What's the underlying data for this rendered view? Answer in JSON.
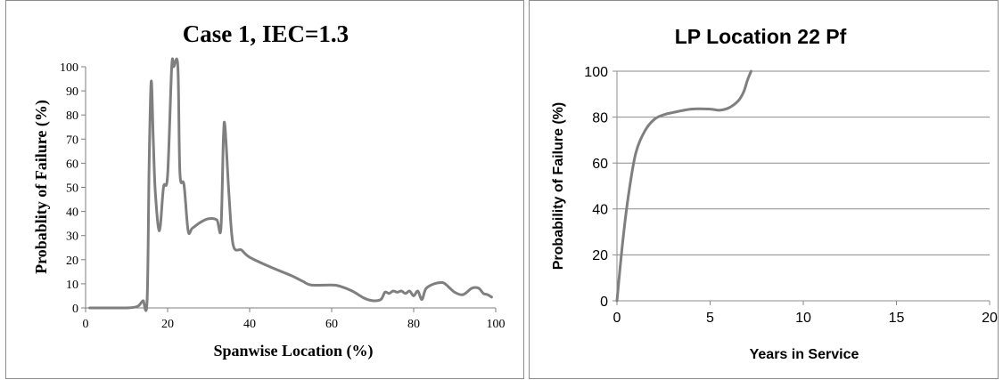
{
  "chart_data": [
    {
      "type": "line",
      "title": "Case 1, IEC=1.3",
      "xlabel": "Spanwise Location (%)",
      "ylabel": "Probablity of Failure (%)",
      "xlim": [
        0,
        100
      ],
      "ylim": [
        0,
        100
      ],
      "xticks": [
        0,
        20,
        40,
        60,
        80,
        100
      ],
      "yticks": [
        0,
        10,
        20,
        30,
        40,
        50,
        60,
        70,
        80,
        90,
        100
      ],
      "grid": false,
      "line_color": "#7f7f7f",
      "series": [
        {
          "x": [
            1,
            5,
            10,
            12,
            13,
            14,
            15,
            15.5,
            16,
            16.5,
            17,
            18,
            19,
            20,
            21,
            21.5,
            22.5,
            23,
            24,
            25,
            26,
            28,
            30,
            32,
            33,
            33.6,
            34,
            35,
            36,
            38,
            40,
            45,
            50,
            53,
            55,
            60,
            62,
            65,
            68,
            70,
            72,
            73,
            74,
            75,
            76,
            77,
            78,
            79,
            80,
            81,
            82,
            83,
            85,
            87,
            88,
            90,
            92,
            94,
            95,
            96,
            97,
            98,
            99
          ],
          "y": [
            0,
            0,
            0,
            0.3,
            1,
            3,
            3,
            60,
            94,
            70,
            48,
            32,
            50,
            55,
            100,
            100,
            100,
            56,
            51,
            32,
            33,
            35.5,
            37,
            36.5,
            33,
            70,
            75,
            46,
            26,
            24,
            21,
            17,
            13.5,
            11,
            9.5,
            9.5,
            9,
            7,
            4,
            3,
            3.5,
            6.5,
            6,
            7,
            6.5,
            7,
            6,
            7,
            5,
            7,
            3.5,
            8,
            10,
            10.5,
            9.5,
            6.5,
            5.5,
            8,
            8.5,
            8,
            6,
            5.5,
            4.5
          ]
        }
      ]
    },
    {
      "type": "line",
      "title": "LP Location 22 Pf",
      "xlabel": "Years in Service",
      "ylabel": "Probability of Failure (%)",
      "xlim": [
        0,
        20
      ],
      "ylim": [
        0,
        100
      ],
      "xticks": [
        0,
        5,
        10,
        15,
        20
      ],
      "yticks": [
        0,
        20,
        40,
        60,
        80,
        100
      ],
      "grid": true,
      "line_color": "#7f7f7f",
      "series": [
        {
          "x": [
            0,
            0.3,
            0.6,
            1,
            1.5,
            2,
            2.5,
            3,
            4,
            5,
            5.5,
            6,
            6.5,
            6.8,
            7,
            7.2
          ],
          "y": [
            0,
            25,
            45,
            64,
            74,
            79,
            81,
            82,
            83.5,
            83.5,
            83,
            84,
            87,
            91,
            96,
            100
          ]
        }
      ]
    }
  ]
}
